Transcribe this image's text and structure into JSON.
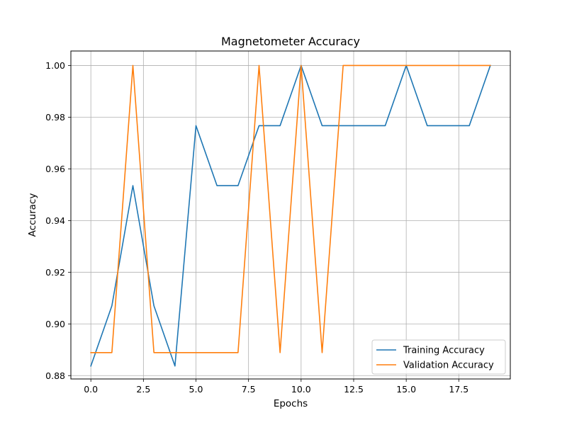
{
  "chart_data": {
    "type": "line",
    "title": "Magnetometer Accuracy",
    "xlabel": "Epochs",
    "ylabel": "Accuracy",
    "xlim": [
      -0.95,
      19.95
    ],
    "ylim": [
      0.8787,
      1.0056
    ],
    "xticks": [
      0.0,
      2.5,
      5.0,
      7.5,
      10.0,
      12.5,
      15.0,
      17.5
    ],
    "xtick_labels": [
      "0.0",
      "2.5",
      "5.0",
      "7.5",
      "10.0",
      "12.5",
      "15.0",
      "17.5"
    ],
    "yticks": [
      0.88,
      0.9,
      0.92,
      0.94,
      0.96,
      0.98,
      1.0
    ],
    "ytick_labels": [
      "0.88",
      "0.90",
      "0.92",
      "0.94",
      "0.96",
      "0.98",
      "1.00"
    ],
    "grid": true,
    "legend_position": "lower-right",
    "x": [
      0,
      1,
      2,
      3,
      4,
      5,
      6,
      7,
      8,
      9,
      10,
      11,
      12,
      13,
      14,
      15,
      16,
      17,
      18,
      19
    ],
    "series": [
      {
        "name": "Training Accuracy",
        "color": "#1f77b4",
        "values": [
          0.8837,
          0.907,
          0.9535,
          0.907,
          0.8837,
          0.9767,
          0.9535,
          0.9535,
          0.9767,
          0.9767,
          1.0,
          0.9767,
          0.9767,
          0.9767,
          0.9767,
          1.0,
          0.9767,
          0.9767,
          0.9767,
          1.0
        ]
      },
      {
        "name": "Validation Accuracy",
        "color": "#ff7f0e",
        "values": [
          0.8889,
          0.8889,
          1.0,
          0.8889,
          0.8889,
          0.8889,
          0.8889,
          0.8889,
          1.0,
          0.8889,
          1.0,
          0.8889,
          1.0,
          1.0,
          1.0,
          1.0,
          1.0,
          1.0,
          1.0,
          1.0
        ]
      }
    ]
  }
}
